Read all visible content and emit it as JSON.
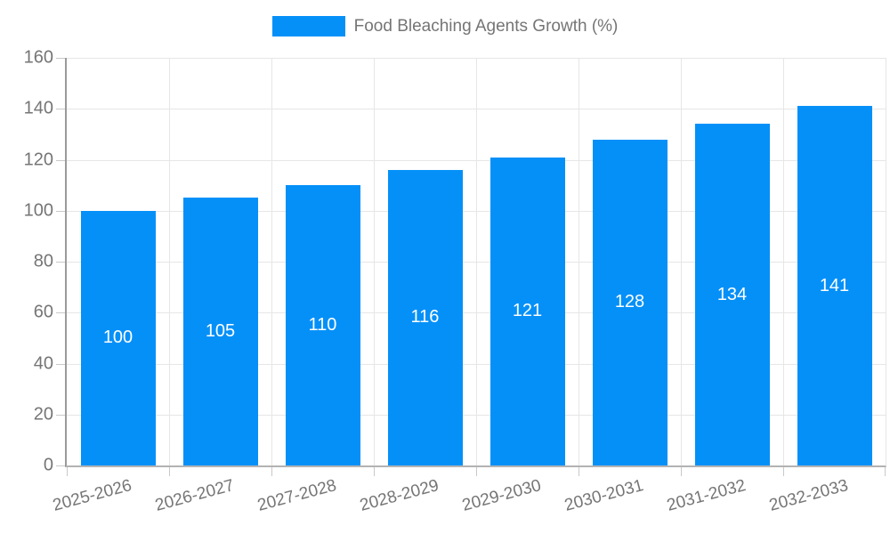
{
  "legend": {
    "label": "Food Bleaching Agents Growth (%)"
  },
  "colors": {
    "bar": "#0590f8",
    "grid": "#e6e6e6",
    "axis_text": "#757575",
    "bar_label_text": "#ffffff",
    "background": "#ffffff"
  },
  "chart_data": {
    "type": "bar",
    "title": "",
    "xlabel": "",
    "ylabel": "",
    "categories": [
      "2025-2026",
      "2026-2027",
      "2027-2028",
      "2028-2029",
      "2029-2030",
      "2030-2031",
      "2031-2032",
      "2032-2033"
    ],
    "series": [
      {
        "name": "Food Bleaching Agents Growth (%)",
        "values": [
          100,
          105,
          110,
          116,
          121,
          128,
          134,
          141
        ]
      }
    ],
    "bar_labels": [
      "100",
      "105",
      "110",
      "116",
      "121",
      "128",
      "134",
      "141"
    ],
    "ylim": [
      0,
      160
    ],
    "y_ticks": [
      0,
      20,
      40,
      60,
      80,
      100,
      120,
      140,
      160
    ],
    "grid": true,
    "legend_position": "top"
  }
}
